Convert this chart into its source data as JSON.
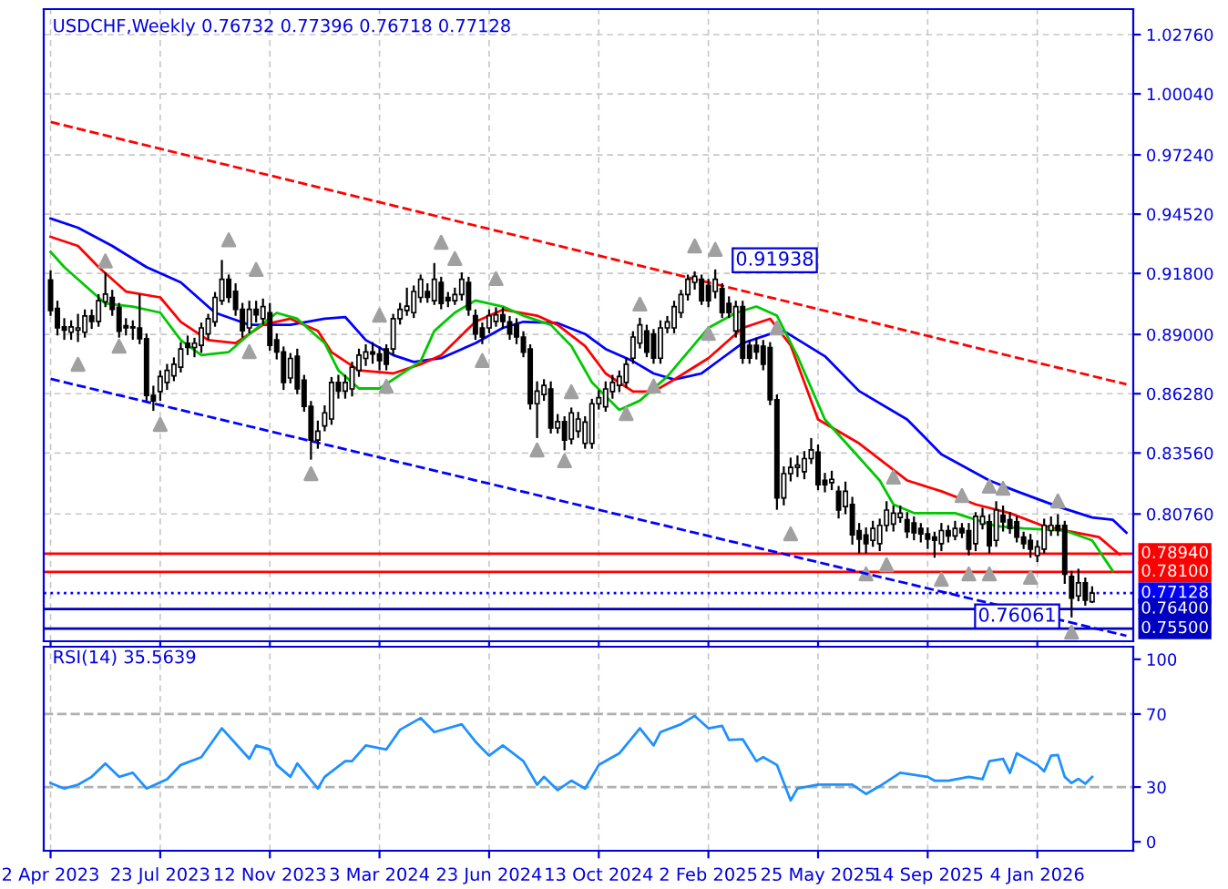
{
  "chart_data": [
    {
      "type": "candlestick",
      "title": "USDCHF,Weekly 0.76732 0.77396 0.76718 0.77128",
      "tick_labels": "y",
      "grid": true,
      "xlim": [
        "2023-03-26",
        "2026-04-12"
      ],
      "ylim": [
        0.7492,
        1.0393
      ],
      "xticks": [
        {
          "value": "2023-04-02",
          "label": null
        },
        {
          "value": "2023-07-23",
          "label": null
        },
        {
          "value": "2023-11-12",
          "label": null
        },
        {
          "value": "2024-03-03",
          "label": null
        },
        {
          "value": "2024-06-23",
          "label": null
        },
        {
          "value": "2024-10-13",
          "label": null
        },
        {
          "value": "2025-02-02",
          "label": null
        },
        {
          "value": "2025-05-25",
          "label": null
        },
        {
          "value": "2025-09-14",
          "label": null
        },
        {
          "value": "2026-01-04",
          "label": null
        }
      ],
      "yticks": [
        {
          "value": 1.0276,
          "label": "1.02760"
        },
        {
          "value": 1.0004,
          "label": "1.00040"
        },
        {
          "value": 0.9724,
          "label": "0.97240"
        },
        {
          "value": 0.9452,
          "label": "0.94520"
        },
        {
          "value": 0.918,
          "label": "0.91800"
        },
        {
          "value": 0.89,
          "label": "0.89000"
        },
        {
          "value": 0.8628,
          "label": "0.86280"
        },
        {
          "value": 0.8356,
          "label": "0.83560"
        },
        {
          "value": 0.8076,
          "label": "0.80760"
        }
      ],
      "x": [
        "2023-04-02",
        "2023-04-09",
        "2023-04-16",
        "2023-04-23",
        "2023-04-30",
        "2023-05-07",
        "2023-05-14",
        "2023-05-21",
        "2023-05-28",
        "2023-06-04",
        "2023-06-11",
        "2023-06-18",
        "2023-06-25",
        "2023-07-02",
        "2023-07-09",
        "2023-07-16",
        "2023-07-23",
        "2023-07-30",
        "2023-08-06",
        "2023-08-13",
        "2023-08-20",
        "2023-08-27",
        "2023-09-03",
        "2023-09-10",
        "2023-09-17",
        "2023-09-24",
        "2023-10-01",
        "2023-10-08",
        "2023-10-15",
        "2023-10-22",
        "2023-10-29",
        "2023-11-05",
        "2023-11-12",
        "2023-11-19",
        "2023-11-26",
        "2023-12-03",
        "2023-12-10",
        "2023-12-17",
        "2023-12-24",
        "2023-12-31",
        "2024-01-07",
        "2024-01-14",
        "2024-01-21",
        "2024-01-28",
        "2024-02-04",
        "2024-02-11",
        "2024-02-18",
        "2024-02-25",
        "2024-03-03",
        "2024-03-10",
        "2024-03-17",
        "2024-03-24",
        "2024-03-31",
        "2024-04-07",
        "2024-04-14",
        "2024-04-21",
        "2024-04-28",
        "2024-05-05",
        "2024-05-12",
        "2024-05-19",
        "2024-05-26",
        "2024-06-02",
        "2024-06-09",
        "2024-06-16",
        "2024-06-23",
        "2024-06-30",
        "2024-07-07",
        "2024-07-14",
        "2024-07-21",
        "2024-07-28",
        "2024-08-04",
        "2024-08-11",
        "2024-08-18",
        "2024-08-25",
        "2024-09-01",
        "2024-09-08",
        "2024-09-15",
        "2024-09-22",
        "2024-09-29",
        "2024-10-06",
        "2024-10-13",
        "2024-10-20",
        "2024-10-27",
        "2024-11-03",
        "2024-11-10",
        "2024-11-17",
        "2024-11-24",
        "2024-12-01",
        "2024-12-08",
        "2024-12-15",
        "2024-12-22",
        "2024-12-29",
        "2025-01-05",
        "2025-01-12",
        "2025-01-19",
        "2025-01-26",
        "2025-02-02",
        "2025-02-09",
        "2025-02-16",
        "2025-02-23",
        "2025-03-02",
        "2025-03-09",
        "2025-03-16",
        "2025-03-23",
        "2025-03-30",
        "2025-04-06",
        "2025-04-13",
        "2025-04-20",
        "2025-04-27",
        "2025-05-04",
        "2025-05-11",
        "2025-05-18",
        "2025-05-25",
        "2025-06-01",
        "2025-06-08",
        "2025-06-15",
        "2025-06-22",
        "2025-06-29",
        "2025-07-06",
        "2025-07-13",
        "2025-07-20",
        "2025-07-27",
        "2025-08-03",
        "2025-08-10",
        "2025-08-17",
        "2025-08-24",
        "2025-08-31",
        "2025-09-07",
        "2025-09-14",
        "2025-09-21",
        "2025-09-28",
        "2025-10-05",
        "2025-10-12",
        "2025-10-19",
        "2025-10-26",
        "2025-11-02",
        "2025-11-09",
        "2025-11-16",
        "2025-11-23",
        "2025-11-30",
        "2025-12-07",
        "2025-12-14",
        "2025-12-21",
        "2025-12-28",
        "2026-01-04",
        "2026-01-11",
        "2026-01-18",
        "2026-01-25",
        "2026-02-01",
        "2026-02-08",
        "2026-02-15",
        "2026-02-22",
        "2026-03-01"
      ],
      "ohlc": [
        [
          0.915,
          0.919,
          0.899,
          0.901
        ],
        [
          0.902,
          0.905,
          0.89,
          0.893
        ],
        [
          0.8935,
          0.897,
          0.888,
          0.892
        ],
        [
          0.891,
          0.896,
          0.888,
          0.8935
        ],
        [
          0.892,
          0.899,
          0.887,
          0.893
        ],
        [
          0.891,
          0.901,
          0.889,
          0.8985
        ],
        [
          0.8985,
          0.901,
          0.893,
          0.896
        ],
        [
          0.896,
          0.908,
          0.894,
          0.9055
        ],
        [
          0.905,
          0.918,
          0.903,
          0.9085
        ],
        [
          0.907,
          0.91,
          0.899,
          0.9015
        ],
        [
          0.9025,
          0.904,
          0.889,
          0.8915
        ],
        [
          0.894,
          0.897,
          0.89,
          0.893
        ],
        [
          0.8935,
          0.896,
          0.888,
          0.893
        ],
        [
          0.893,
          0.908,
          0.886,
          0.888
        ],
        [
          0.888,
          0.89,
          0.86,
          0.862
        ],
        [
          0.862,
          0.866,
          0.8554,
          0.8595
        ],
        [
          0.8638,
          0.873,
          0.86,
          0.8707
        ],
        [
          0.868,
          0.876,
          0.865,
          0.8735
        ],
        [
          0.871,
          0.879,
          0.869,
          0.8763
        ],
        [
          0.875,
          0.886,
          0.873,
          0.8833
        ],
        [
          0.886,
          0.889,
          0.881,
          0.884
        ],
        [
          0.884,
          0.888,
          0.88,
          0.886
        ],
        [
          0.885,
          0.895,
          0.882,
          0.893
        ],
        [
          0.8902,
          0.899,
          0.888,
          0.8972
        ],
        [
          0.8958,
          0.909,
          0.894,
          0.907
        ],
        [
          0.9055,
          0.9237,
          0.904,
          0.9153
        ],
        [
          0.9153,
          0.917,
          0.905,
          0.907
        ],
        [
          0.9098,
          0.913,
          0.899,
          0.9015
        ],
        [
          0.9015,
          0.904,
          0.889,
          0.8917
        ],
        [
          0.893,
          0.905,
          0.891,
          0.9015
        ],
        [
          0.9015,
          0.905,
          0.896,
          0.899
        ],
        [
          0.8972,
          0.906,
          0.895,
          0.9028
        ],
        [
          0.9,
          0.904,
          0.883,
          0.885
        ],
        [
          0.8875,
          0.89,
          0.879,
          0.882
        ],
        [
          0.882,
          0.884,
          0.865,
          0.868
        ],
        [
          0.87,
          0.881,
          0.868,
          0.879
        ],
        [
          0.88,
          0.883,
          0.863,
          0.865
        ],
        [
          0.869,
          0.871,
          0.855,
          0.857
        ],
        [
          0.857,
          0.859,
          0.833,
          0.8415
        ],
        [
          0.8415,
          0.85,
          0.838,
          0.8456
        ],
        [
          0.848,
          0.857,
          0.846,
          0.854
        ],
        [
          0.8512,
          0.87,
          0.849,
          0.868
        ],
        [
          0.868,
          0.871,
          0.861,
          0.864
        ],
        [
          0.864,
          0.871,
          0.861,
          0.868
        ],
        [
          0.865,
          0.877,
          0.862,
          0.875
        ],
        [
          0.8735,
          0.883,
          0.871,
          0.8805
        ],
        [
          0.879,
          0.885,
          0.876,
          0.882
        ],
        [
          0.882,
          0.886,
          0.877,
          0.881
        ],
        [
          0.881,
          0.884,
          0.874,
          0.878
        ],
        [
          0.8833,
          0.885,
          0.874,
          0.8763
        ],
        [
          0.8833,
          0.899,
          0.881,
          0.8972
        ],
        [
          0.8972,
          0.904,
          0.895,
          0.9015
        ],
        [
          0.901,
          0.911,
          0.899,
          0.903
        ],
        [
          0.9,
          0.912,
          0.898,
          0.9097
        ],
        [
          0.907,
          0.917,
          0.905,
          0.9153
        ],
        [
          0.9097,
          0.913,
          0.905,
          0.907
        ],
        [
          0.9055,
          0.9223,
          0.904,
          0.9153
        ],
        [
          0.9139,
          0.916,
          0.902,
          0.9042
        ],
        [
          0.907,
          0.909,
          0.903,
          0.9055
        ],
        [
          0.9055,
          0.911,
          0.904,
          0.9083
        ],
        [
          0.9083,
          0.918,
          0.906,
          0.9153
        ],
        [
          0.9139,
          0.916,
          0.899,
          0.9014
        ],
        [
          0.8986,
          0.901,
          0.888,
          0.8902
        ],
        [
          0.893,
          0.895,
          0.886,
          0.8888
        ],
        [
          0.893,
          0.901,
          0.891,
          0.8986
        ],
        [
          0.896,
          0.902,
          0.894,
          0.899
        ],
        [
          0.899,
          0.902,
          0.893,
          0.896
        ],
        [
          0.8958,
          0.898,
          0.888,
          0.8902
        ],
        [
          0.8944,
          0.897,
          0.886,
          0.8888
        ],
        [
          0.8888,
          0.891,
          0.88,
          0.8819
        ],
        [
          0.8833,
          0.885,
          0.856,
          0.8582
        ],
        [
          0.8582,
          0.868,
          0.8429,
          0.864
        ],
        [
          0.8624,
          0.869,
          0.86,
          0.8666
        ],
        [
          0.865,
          0.868,
          0.845,
          0.847
        ],
        [
          0.847,
          0.853,
          0.845,
          0.85
        ],
        [
          0.85,
          0.852,
          0.8373,
          0.8415
        ],
        [
          0.842,
          0.856,
          0.84,
          0.854
        ],
        [
          0.8456,
          0.854,
          0.843,
          0.8512
        ],
        [
          0.84,
          0.852,
          0.838,
          0.8498
        ],
        [
          0.84,
          0.86,
          0.838,
          0.8582
        ],
        [
          0.8582,
          0.864,
          0.856,
          0.861
        ],
        [
          0.8568,
          0.868,
          0.855,
          0.865
        ],
        [
          0.8638,
          0.871,
          0.861,
          0.868
        ],
        [
          0.8666,
          0.873,
          0.864,
          0.8707
        ],
        [
          0.868,
          0.879,
          0.866,
          0.8763
        ],
        [
          0.8791,
          0.891,
          0.877,
          0.8888
        ],
        [
          0.886,
          0.8972,
          0.884,
          0.8944
        ],
        [
          0.8916,
          0.894,
          0.88,
          0.8819
        ],
        [
          0.8902,
          0.892,
          0.877,
          0.8791
        ],
        [
          0.8791,
          0.896,
          0.877,
          0.893
        ],
        [
          0.893,
          0.898,
          0.891,
          0.8958
        ],
        [
          0.893,
          0.905,
          0.891,
          0.9028
        ],
        [
          0.9,
          0.91,
          0.898,
          0.9083
        ],
        [
          0.9083,
          0.917,
          0.906,
          0.9153
        ],
        [
          0.9139,
          0.9185,
          0.911,
          0.9167
        ],
        [
          0.9153,
          0.917,
          0.904,
          0.9055
        ],
        [
          0.9125,
          0.915,
          0.903,
          0.9055
        ],
        [
          0.9097,
          0.91938,
          0.907,
          0.9153
        ],
        [
          0.911,
          0.913,
          0.898,
          0.9
        ],
        [
          0.9042,
          0.907,
          0.898,
          0.9
        ],
        [
          0.8916,
          0.905,
          0.889,
          0.9028
        ],
        [
          0.9028,
          0.905,
          0.877,
          0.8791
        ],
        [
          0.885,
          0.887,
          0.877,
          0.8791
        ],
        [
          0.885,
          0.888,
          0.879,
          0.882
        ],
        [
          0.8846,
          0.887,
          0.874,
          0.8763
        ],
        [
          0.884,
          0.886,
          0.858,
          0.86
        ],
        [
          0.86,
          0.862,
          0.81,
          0.815
        ],
        [
          0.815,
          0.829,
          0.812,
          0.8261
        ],
        [
          0.8261,
          0.833,
          0.823,
          0.829
        ],
        [
          0.829,
          0.834,
          0.825,
          0.83
        ],
        [
          0.827,
          0.836,
          0.824,
          0.833
        ],
        [
          0.833,
          0.842,
          0.831,
          0.837
        ],
        [
          0.836,
          0.839,
          0.819,
          0.821
        ],
        [
          0.823,
          0.826,
          0.818,
          0.821
        ],
        [
          0.822,
          0.827,
          0.819,
          0.8235
        ],
        [
          0.818,
          0.82,
          0.806,
          0.8094
        ],
        [
          0.811,
          0.822,
          0.808,
          0.818
        ],
        [
          0.812,
          0.815,
          0.794,
          0.798
        ],
        [
          0.8,
          0.803,
          0.79,
          0.796
        ],
        [
          0.798,
          0.801,
          0.79,
          0.794
        ],
        [
          0.7955,
          0.804,
          0.793,
          0.801
        ],
        [
          0.794,
          0.805,
          0.791,
          0.8024
        ],
        [
          0.8024,
          0.813,
          0.8,
          0.8094
        ],
        [
          0.803,
          0.811,
          0.8,
          0.808
        ],
        [
          0.806,
          0.811,
          0.804,
          0.808
        ],
        [
          0.805,
          0.808,
          0.797,
          0.7995
        ],
        [
          0.8035,
          0.806,
          0.796,
          0.799
        ],
        [
          0.801,
          0.803,
          0.795,
          0.7985
        ],
        [
          0.7985,
          0.801,
          0.792,
          0.796
        ],
        [
          0.797,
          0.799,
          0.788,
          0.7955
        ],
        [
          0.794,
          0.803,
          0.791,
          0.8
        ],
        [
          0.8,
          0.802,
          0.795,
          0.7975
        ],
        [
          0.7975,
          0.804,
          0.796,
          0.801
        ],
        [
          0.801,
          0.803,
          0.797,
          0.799
        ],
        [
          0.8,
          0.803,
          0.789,
          0.7915
        ],
        [
          0.794,
          0.808,
          0.791,
          0.8065
        ],
        [
          0.803,
          0.81,
          0.801,
          0.8065
        ],
        [
          0.804,
          0.807,
          0.79,
          0.793
        ],
        [
          0.7955,
          0.813,
          0.793,
          0.8094
        ],
        [
          0.807,
          0.811,
          0.8,
          0.804
        ],
        [
          0.805,
          0.808,
          0.799,
          0.801
        ],
        [
          0.804,
          0.806,
          0.795,
          0.797
        ],
        [
          0.797,
          0.799,
          0.792,
          0.794
        ],
        [
          0.7955,
          0.798,
          0.788,
          0.7915
        ],
        [
          0.7885,
          0.795,
          0.786,
          0.7925
        ],
        [
          0.7915,
          0.805,
          0.79,
          0.8024
        ],
        [
          0.8,
          0.806,
          0.798,
          0.8024
        ],
        [
          0.8024,
          0.807,
          0.798,
          0.8
        ],
        [
          0.8024,
          0.804,
          0.776,
          0.78
        ],
        [
          0.779,
          0.781,
          0.7606,
          0.769
        ],
        [
          0.77,
          0.782,
          0.768,
          0.776
        ],
        [
          0.776,
          0.778,
          0.766,
          0.768
        ],
        [
          0.76732,
          0.77396,
          0.76718,
          0.77128
        ]
      ],
      "series": [
        {
          "type": "line",
          "color": "#0000ff",
          "x": [
            "2023-04-02",
            "2023-04-30",
            "2023-06-04",
            "2023-07-09",
            "2023-08-13",
            "2023-09-17",
            "2023-10-22",
            "2023-12-03",
            "2024-01-07",
            "2024-01-28",
            "2024-02-18",
            "2024-03-17",
            "2024-04-07",
            "2024-05-05",
            "2024-06-09",
            "2024-07-07",
            "2024-07-28",
            "2024-09-01",
            "2024-09-29",
            "2024-10-20",
            "2024-11-17",
            "2024-12-08",
            "2024-12-29",
            "2025-01-26",
            "2025-02-16",
            "2025-03-09",
            "2025-04-06",
            "2025-04-20",
            "2025-06-01",
            "2025-07-06",
            "2025-08-24",
            "2025-09-28",
            "2025-11-16",
            "2025-12-14",
            "2026-01-25",
            "2026-03-01",
            "2026-03-22",
            "2026-04-05"
          ],
          "values": [
            0.9432,
            0.939,
            0.9306,
            0.9209,
            0.9139,
            0.9,
            0.8944,
            0.8944,
            0.8972,
            0.898,
            0.8874,
            0.8805,
            0.8774,
            0.8791,
            0.886,
            0.893,
            0.8958,
            0.8952,
            0.8902,
            0.8833,
            0.8777,
            0.8721,
            0.8693,
            0.8721,
            0.8791,
            0.886,
            0.8902,
            0.8916,
            0.88,
            0.864,
            0.851,
            0.835,
            0.823,
            0.818,
            0.811,
            0.806,
            0.805,
            0.799
          ]
        },
        {
          "type": "line",
          "color": "#ff0000",
          "x": [
            "2023-04-02",
            "2023-04-30",
            "2023-05-21",
            "2023-06-18",
            "2023-07-23",
            "2023-08-13",
            "2023-09-10",
            "2023-10-08",
            "2023-11-05",
            "2023-12-03",
            "2023-12-31",
            "2024-01-14",
            "2024-02-11",
            "2024-03-17",
            "2024-04-14",
            "2024-05-05",
            "2024-06-09",
            "2024-07-07",
            "2024-08-11",
            "2024-09-01",
            "2024-09-29",
            "2024-10-20",
            "2024-11-17",
            "2024-12-08",
            "2024-12-29",
            "2025-02-02",
            "2025-03-09",
            "2025-04-06",
            "2025-04-27",
            "2025-05-25",
            "2025-07-06",
            "2025-08-24",
            "2025-09-28",
            "2025-11-02",
            "2025-12-07",
            "2026-01-11",
            "2026-02-01",
            "2026-03-08",
            "2026-03-29"
          ],
          "values": [
            0.9348,
            0.9306,
            0.9209,
            0.9097,
            0.907,
            0.8958,
            0.8874,
            0.886,
            0.8944,
            0.8972,
            0.8916,
            0.8819,
            0.8735,
            0.8721,
            0.8763,
            0.8805,
            0.8958,
            0.9014,
            0.8986,
            0.8944,
            0.8847,
            0.8721,
            0.8638,
            0.8638,
            0.8693,
            0.8791,
            0.893,
            0.8972,
            0.885,
            0.851,
            0.84,
            0.823,
            0.818,
            0.812,
            0.808,
            0.802,
            0.8,
            0.797,
            0.789
          ]
        },
        {
          "type": "line",
          "color": "#00c800",
          "x": [
            "2023-04-02",
            "2023-04-16",
            "2023-05-14",
            "2023-05-28",
            "2023-06-25",
            "2023-07-23",
            "2023-08-13",
            "2023-09-03",
            "2023-10-01",
            "2023-10-22",
            "2023-11-19",
            "2023-12-10",
            "2024-01-07",
            "2024-01-21",
            "2024-02-11",
            "2024-03-03",
            "2024-03-31",
            "2024-04-14",
            "2024-04-28",
            "2024-05-19",
            "2024-06-09",
            "2024-07-07",
            "2024-07-28",
            "2024-08-25",
            "2024-09-15",
            "2024-10-06",
            "2024-11-03",
            "2024-11-24",
            "2024-12-22",
            "2025-01-12",
            "2025-02-02",
            "2025-03-02",
            "2025-03-23",
            "2025-04-13",
            "2025-05-04",
            "2025-06-01",
            "2025-06-29",
            "2025-07-27",
            "2025-08-10",
            "2025-08-31",
            "2025-10-12",
            "2025-11-23",
            "2025-12-21",
            "2026-02-01",
            "2026-03-01",
            "2026-03-22"
          ],
          "values": [
            0.9279,
            0.9209,
            0.9097,
            0.9042,
            0.9028,
            0.9,
            0.8874,
            0.8805,
            0.8819,
            0.8902,
            0.8999,
            0.8972,
            0.886,
            0.8735,
            0.8652,
            0.8652,
            0.8735,
            0.8777,
            0.8916,
            0.9,
            0.9056,
            0.9028,
            0.8986,
            0.8944,
            0.8847,
            0.868,
            0.8554,
            0.8596,
            0.8707,
            0.8819,
            0.893,
            0.8999,
            0.9028,
            0.8986,
            0.88,
            0.851,
            0.837,
            0.823,
            0.812,
            0.808,
            0.808,
            0.802,
            0.801,
            0.8,
            0.7955,
            0.7815
          ]
        },
        {
          "type": "scatter",
          "color": "#a0a0a0",
          "marker": "triangle",
          "x": [
            "2023-05-28",
            "2023-10-01",
            "2023-10-29",
            "2024-03-03",
            "2024-05-05",
            "2024-05-19",
            "2024-06-30",
            "2024-11-24",
            "2025-01-19",
            "2025-02-09",
            "2025-08-10",
            "2025-10-19",
            "2025-11-16",
            "2025-11-30",
            "2026-01-25"
          ],
          "values": [
            0.9237,
            0.9334,
            0.9198,
            0.8988,
            0.9323,
            0.9248,
            0.9156,
            0.9039,
            0.9306,
            0.929,
            0.8245,
            0.8161,
            0.8203,
            0.8194,
            0.8136
          ]
        },
        {
          "type": "scatter",
          "color": "#a0a0a0",
          "marker": "triangle",
          "x": [
            "2023-04-30",
            "2023-06-11",
            "2023-07-23",
            "2023-10-22",
            "2023-12-24",
            "2024-03-10",
            "2024-06-16",
            "2024-08-11",
            "2024-09-08",
            "2024-09-15",
            "2024-11-10",
            "2024-12-08",
            "2025-02-02",
            "2025-04-13",
            "2025-04-27",
            "2025-07-13",
            "2025-08-03",
            "2025-09-28",
            "2025-10-26",
            "2025-11-16",
            "2025-12-28",
            "2026-02-08"
          ],
          "values": [
            0.8763,
            0.8846,
            0.8487,
            0.8821,
            0.8261,
            0.8662,
            0.878,
            0.837,
            0.832,
            0.8637,
            0.8537,
            0.8663,
            0.8905,
            0.893,
            0.7985,
            0.7801,
            0.7843,
            0.7776,
            0.7801,
            0.7801,
            0.7785,
            0.7534
          ]
        },
        {
          "type": "line",
          "color": "#ff0000",
          "line_style": "dashed",
          "x": [
            "2023-04-02",
            "2026-04-05"
          ],
          "values": [
            0.9875,
            0.8671
          ]
        },
        {
          "type": "line",
          "color": "#0000ff",
          "line_style": "dashed",
          "x": [
            "2023-04-02",
            "2026-04-05"
          ],
          "values": [
            0.8696,
            0.7517
          ]
        }
      ],
      "ref_lines": [
        {
          "axis": "y",
          "value": 0.7894,
          "label": "0.78940",
          "color": "#ff0000",
          "line_style": "solid"
        },
        {
          "axis": "y",
          "value": 0.781,
          "label": "0.78100",
          "color": "#ff0000",
          "line_style": "solid"
        },
        {
          "axis": "y",
          "value": 0.77128,
          "label": "0.77128",
          "color": "#0000ff",
          "line_style": "dotted"
        },
        {
          "axis": "y",
          "value": 0.764,
          "label": "0.76400",
          "color": "#0000c0",
          "line_style": "solid"
        },
        {
          "axis": "y",
          "value": 0.755,
          "label": "0.75500",
          "color": "#0000c0",
          "line_style": "solid"
        }
      ],
      "annotations": [
        {
          "text": "0.91938",
          "x": "2025-02-09",
          "y": 0.91938
        },
        {
          "text": "0.76061",
          "x": "2026-02-08",
          "y": 0.7606
        }
      ]
    },
    {
      "type": "line",
      "title": "RSI(14) 35.5639",
      "grid": "x",
      "xlim": [
        "2023-03-26",
        "2026-04-12"
      ],
      "ylim": [
        -4.9,
        106.9
      ],
      "yticks": [
        100,
        70,
        30,
        0
      ],
      "xticks": [
        {
          "value": "2023-04-02",
          "label": "2 Apr 2023"
        },
        {
          "value": "2023-07-23",
          "label": "23 Jul 2023"
        },
        {
          "value": "2023-11-12",
          "label": "12 Nov 2023"
        },
        {
          "value": "2024-03-03",
          "label": "3 Mar 2024"
        },
        {
          "value": "2024-06-23",
          "label": "23 Jun 2024"
        },
        {
          "value": "2024-10-13",
          "label": "13 Oct 2024"
        },
        {
          "value": "2025-02-02",
          "label": "2 Feb 2025"
        },
        {
          "value": "2025-05-25",
          "label": "25 May 2025"
        },
        {
          "value": "2025-09-14",
          "label": "14 Sep 2025"
        },
        {
          "value": "2026-01-04",
          "label": "4 Jan 2026"
        }
      ],
      "ref_lines": [
        {
          "axis": "y",
          "value": 70,
          "color": "#b0b0b0",
          "line_style": "dashed"
        },
        {
          "axis": "y",
          "value": 30,
          "color": "#b0b0b0",
          "line_style": "dashed"
        }
      ],
      "series": [
        {
          "color": "#1e90ff",
          "x": [
            "2023-04-02",
            "2023-04-16",
            "2023-04-30",
            "2023-05-14",
            "2023-05-28",
            "2023-06-11",
            "2023-06-25",
            "2023-07-09",
            "2023-07-30",
            "2023-08-13",
            "2023-09-03",
            "2023-09-24",
            "2023-10-22",
            "2023-10-29",
            "2023-11-12",
            "2023-11-19",
            "2023-12-03",
            "2023-12-10",
            "2023-12-31",
            "2024-01-07",
            "2024-01-28",
            "2024-02-04",
            "2024-02-18",
            "2024-03-10",
            "2024-03-24",
            "2024-04-14",
            "2024-04-28",
            "2024-05-26",
            "2024-06-09",
            "2024-06-23",
            "2024-07-07",
            "2024-07-28",
            "2024-08-11",
            "2024-08-18",
            "2024-09-01",
            "2024-09-15",
            "2024-09-29",
            "2024-10-13",
            "2024-11-03",
            "2024-11-24",
            "2024-12-08",
            "2024-12-15",
            "2025-01-05",
            "2025-01-19",
            "2025-02-02",
            "2025-02-16",
            "2025-02-23",
            "2025-03-09",
            "2025-03-23",
            "2025-03-30",
            "2025-04-13",
            "2025-04-27",
            "2025-05-04",
            "2025-05-25",
            "2025-06-08",
            "2025-06-29",
            "2025-07-13",
            "2025-07-27",
            "2025-08-17",
            "2025-09-14",
            "2025-09-21",
            "2025-10-05",
            "2025-10-26",
            "2025-11-09",
            "2025-11-16",
            "2025-11-30",
            "2025-12-07",
            "2025-12-14",
            "2025-12-21",
            "2026-01-04",
            "2026-01-11",
            "2026-01-18",
            "2026-01-25",
            "2026-02-01",
            "2026-02-08",
            "2026-02-15",
            "2026-02-22",
            "2026-03-01"
          ],
          "values": [
            32.2,
            29.2,
            31.3,
            35.6,
            42.9,
            35.6,
            37.8,
            29.2,
            34.3,
            42.1,
            46.4,
            62.2,
            45.5,
            52.8,
            50.6,
            42.1,
            35.6,
            42.9,
            29.2,
            35.6,
            44.2,
            44.2,
            52.8,
            50.6,
            61.4,
            67.8,
            60.1,
            64.4,
            54.9,
            47.2,
            52.8,
            44.2,
            31.3,
            35.6,
            28.3,
            33.5,
            29.2,
            42.1,
            48.5,
            62.2,
            52.8,
            60.1,
            64.4,
            69,
            62.2,
            63.5,
            55.8,
            56.2,
            44.2,
            46.4,
            42.1,
            22.7,
            29.2,
            31.3,
            31.3,
            31.3,
            26.2,
            30.5,
            37.8,
            35.6,
            33.5,
            33.5,
            35.6,
            34.3,
            44.2,
            45.5,
            37.8,
            48.5,
            46.4,
            42.1,
            38.6,
            47.2,
            47.6,
            35.6,
            32.2,
            34.5,
            31.8,
            35.5639
          ]
        }
      ]
    }
  ]
}
